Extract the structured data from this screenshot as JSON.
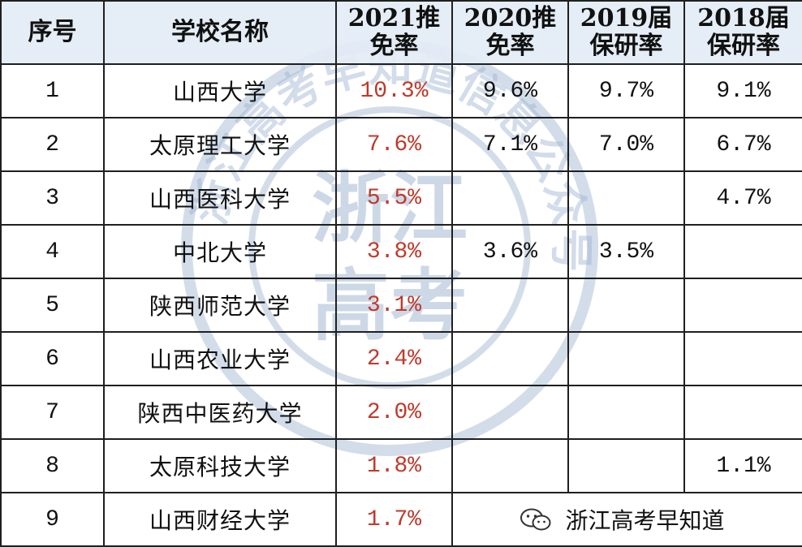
{
  "headers": {
    "index": "序号",
    "school": "学校名称",
    "y2021": [
      "2021推",
      "免率"
    ],
    "y2020": [
      "2020推",
      "免率"
    ],
    "y2019": [
      "2019届",
      "保研率"
    ],
    "y2018": [
      "2018届",
      "保研率"
    ]
  },
  "rows": [
    {
      "index": "1",
      "school": "山西大学",
      "y2021": "10.3%",
      "y2020": "9.6%",
      "y2019": "9.7%",
      "y2018": "9.1%"
    },
    {
      "index": "2",
      "school": "太原理工大学",
      "y2021": "7.6%",
      "y2020": "7.1%",
      "y2019": "7.0%",
      "y2018": "6.7%"
    },
    {
      "index": "3",
      "school": "山西医科大学",
      "y2021": "5.5%",
      "y2020": "",
      "y2019": "",
      "y2018": "4.7%"
    },
    {
      "index": "4",
      "school": "中北大学",
      "y2021": "3.8%",
      "y2020": "3.6%",
      "y2019": "3.5%",
      "y2018": ""
    },
    {
      "index": "5",
      "school": "陕西师范大学",
      "y2021": "3.1%",
      "y2020": "",
      "y2019": "",
      "y2018": ""
    },
    {
      "index": "6",
      "school": "山西农业大学",
      "y2021": "2.4%",
      "y2020": "",
      "y2019": "",
      "y2018": ""
    },
    {
      "index": "7",
      "school": "陕西中医药大学",
      "y2021": "2.0%",
      "y2020": "",
      "y2019": "",
      "y2018": ""
    },
    {
      "index": "8",
      "school": "太原科技大学",
      "y2021": "1.8%",
      "y2020": "",
      "y2019": "",
      "y2018": "1.1%"
    },
    {
      "index": "9",
      "school": "山西财经大学",
      "y2021": "1.7%",
      "y2020": "",
      "y2019": "",
      "y2018": ""
    }
  ],
  "watermark": {
    "stamp_lines": [
      "浙江",
      "高考"
    ],
    "stamp_ring": "浙江高考早知道信息公众号"
  },
  "source": {
    "icon": "wechat-icon",
    "label": "浙江高考早知道"
  },
  "colors": {
    "highlight": "#c0392b",
    "header_bg": "#e3ebf5",
    "stamp": "#9db3d1"
  }
}
